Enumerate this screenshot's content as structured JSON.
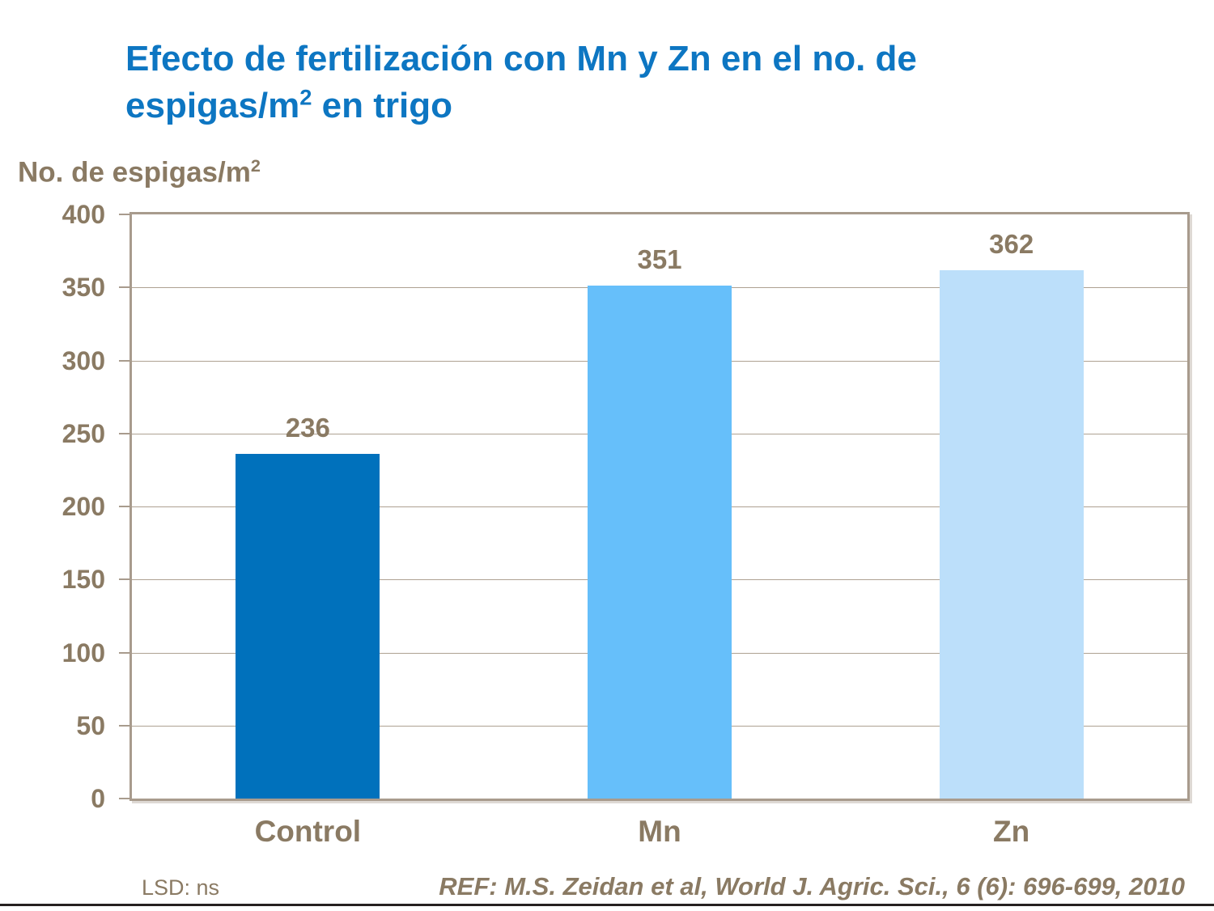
{
  "title": {
    "line1": "Efecto de fertilización con Mn y Zn en el no. de",
    "line2_pre": "espigas/m",
    "line2_sup": "2",
    "line2_post": " en trigo"
  },
  "y_axis_title": {
    "pre": "No. de espigas/m",
    "sup": "2"
  },
  "footer": {
    "lsd_label": "LSD: ns",
    "reference": "REF: M.S. Zeidan et al, World J. Agric. Sci., 6 (6): 696-699, 2010"
  },
  "colors": {
    "title_blue": "#0D76C2",
    "label_brown": "#8A7A63",
    "axis_border": "#A89B8D",
    "gridline": "#AEA192",
    "bottom_line": "#262120"
  },
  "chart_data": {
    "type": "bar",
    "categories": [
      "Control",
      "Mn",
      "Zn"
    ],
    "values": [
      236,
      351,
      362
    ],
    "data_labels": [
      "236",
      "351",
      "362"
    ],
    "bar_colors": [
      "#0071BC",
      "#66BFFA",
      "#BCDFFA"
    ],
    "title": "Efecto de fertilización con Mn y Zn en el no. de espigas/m2 en trigo",
    "ylabel": "No. de espigas/m2",
    "xlabel": "",
    "ylim": [
      0,
      400
    ],
    "yticks": [
      0,
      50,
      100,
      150,
      200,
      250,
      300,
      350,
      400
    ],
    "grid": true,
    "legend": "none",
    "annotations": [
      "LSD: ns",
      "REF: M.S. Zeidan et al, World J. Agric. Sci., 6 (6): 696-699, 2010"
    ]
  }
}
